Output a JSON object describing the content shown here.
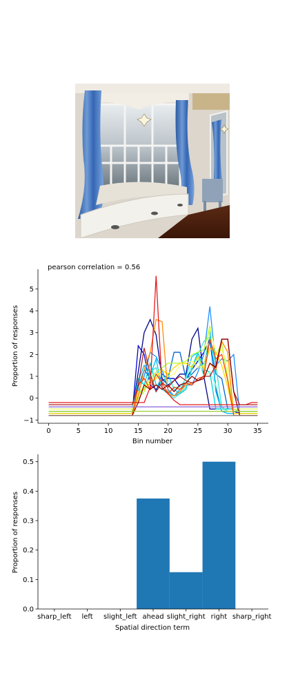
{
  "image": {
    "description": ""
  },
  "chart_data": [
    {
      "type": "line",
      "title": "pearson correlation = 0.56",
      "xlabel": "Bin number",
      "ylabel": "Proportion of responses",
      "xlim": [
        -1.8,
        36.8
      ],
      "ylim": [
        -1.15,
        5.9
      ],
      "xticks": [
        0,
        5,
        10,
        15,
        20,
        25,
        30,
        35
      ],
      "yticks": [
        -1,
        0,
        1,
        2,
        3,
        4,
        5
      ],
      "grid": false,
      "series": [
        {
          "color": "#00008b",
          "values": [
            -0.6,
            -0.6,
            -0.6,
            -0.6,
            -0.6,
            -0.6,
            -0.6,
            -0.6,
            -0.6,
            -0.6,
            -0.6,
            -0.6,
            -0.6,
            -0.6,
            -0.6,
            1.2,
            3.0,
            3.6,
            2.9,
            0.9,
            0.6,
            0.8,
            1.1,
            1.1,
            2.7,
            3.2,
            1.0,
            -0.5,
            -0.5,
            -0.5,
            -0.5,
            -0.5,
            -0.6,
            -0.6,
            -0.6,
            -0.6
          ]
        },
        {
          "color": "#0000cd",
          "values": [
            -0.7,
            -0.7,
            -0.7,
            -0.7,
            -0.7,
            -0.7,
            -0.7,
            -0.7,
            -0.7,
            -0.7,
            -0.7,
            -0.7,
            -0.7,
            -0.7,
            -0.7,
            2.4,
            2.0,
            0.6,
            0.4,
            0.8,
            0.9,
            0.9,
            0.5,
            0.9,
            1.3,
            1.7,
            2.1,
            2.7,
            0.5,
            -0.6,
            -0.6,
            -0.6,
            -0.7,
            -0.7,
            -0.7,
            -0.7
          ]
        },
        {
          "color": "#0066cc",
          "values": [
            -0.6,
            -0.6,
            -0.6,
            -0.6,
            -0.6,
            -0.6,
            -0.6,
            -0.6,
            -0.6,
            -0.6,
            -0.6,
            -0.6,
            -0.6,
            -0.6,
            -0.6,
            0.5,
            1.3,
            0.9,
            0.3,
            1.1,
            0.9,
            2.1,
            2.1,
            0.9,
            1.1,
            1.4,
            1.6,
            2.6,
            1.1,
            0.9,
            -0.5,
            -0.5,
            -0.6,
            -0.6,
            -0.6,
            -0.6
          ]
        },
        {
          "color": "#1e90ff",
          "values": [
            -0.7,
            -0.7,
            -0.7,
            -0.7,
            -0.7,
            -0.7,
            -0.7,
            -0.7,
            -0.7,
            -0.7,
            -0.7,
            -0.7,
            -0.7,
            -0.7,
            -0.7,
            0.3,
            1.0,
            2.1,
            1.9,
            1.3,
            0.4,
            0.1,
            0.4,
            0.6,
            0.6,
            1.2,
            2.0,
            4.2,
            1.5,
            1.8,
            1.7,
            2.0,
            -0.7,
            -0.7,
            -0.7,
            -0.7
          ]
        },
        {
          "color": "#00bfff",
          "values": [
            -0.7,
            -0.7,
            -0.7,
            -0.7,
            -0.7,
            -0.7,
            -0.7,
            -0.7,
            -0.7,
            -0.7,
            -0.7,
            -0.7,
            -0.7,
            -0.7,
            -0.7,
            0.8,
            1.5,
            1.0,
            1.8,
            0.4,
            0.3,
            0.1,
            0.2,
            1.0,
            1.9,
            2.1,
            1.2,
            3.2,
            0.3,
            -0.6,
            -0.7,
            -0.7,
            -0.7,
            -0.7,
            -0.7,
            -0.7
          ]
        },
        {
          "color": "#00ced1",
          "values": [
            -0.5,
            -0.5,
            -0.5,
            -0.5,
            -0.5,
            -0.5,
            -0.5,
            -0.5,
            -0.5,
            -0.5,
            -0.5,
            -0.5,
            -0.5,
            -0.5,
            -0.5,
            0.9,
            0.6,
            1.6,
            0.6,
            0.6,
            1.1,
            0.4,
            0.2,
            0.4,
            1.4,
            2.1,
            1.3,
            1.2,
            -0.5,
            -0.5,
            -0.5,
            -0.5,
            -0.5,
            -0.5,
            -0.5,
            -0.5
          ]
        },
        {
          "color": "#40e0d0",
          "values": [
            -0.6,
            -0.6,
            -0.6,
            -0.6,
            -0.6,
            -0.6,
            -0.6,
            -0.6,
            -0.6,
            -0.6,
            -0.6,
            -0.6,
            -0.6,
            -0.6,
            -0.6,
            0.3,
            0.4,
            1.2,
            1.4,
            0.4,
            0.2,
            0.0,
            0.2,
            0.5,
            1.3,
            2.0,
            2.6,
            2.8,
            1.5,
            -0.4,
            -0.6,
            -0.6,
            -0.6,
            -0.6,
            -0.6,
            -0.6
          ]
        },
        {
          "color": "#7fffd4",
          "values": [
            -0.6,
            -0.6,
            -0.6,
            -0.6,
            -0.6,
            -0.6,
            -0.6,
            -0.6,
            -0.6,
            -0.6,
            -0.6,
            -0.6,
            -0.6,
            -0.6,
            -0.6,
            0.1,
            0.6,
            0.8,
            1.1,
            1.0,
            0.8,
            0.5,
            0.5,
            0.9,
            1.5,
            1.8,
            1.0,
            1.2,
            0.6,
            -0.5,
            -0.6,
            -0.6,
            -0.6,
            -0.6,
            -0.6,
            -0.6
          ]
        },
        {
          "color": "#adff2f",
          "values": [
            -0.6,
            -0.6,
            -0.6,
            -0.6,
            -0.6,
            -0.6,
            -0.6,
            -0.6,
            -0.6,
            -0.6,
            -0.6,
            -0.6,
            -0.6,
            -0.6,
            -0.6,
            0.0,
            0.3,
            0.9,
            1.2,
            1.4,
            1.6,
            1.6,
            1.6,
            1.7,
            2.0,
            2.1,
            2.2,
            3.3,
            2.0,
            2.5,
            0.9,
            -0.5,
            -0.6,
            -0.6,
            -0.6,
            -0.6
          ]
        },
        {
          "color": "#ffff66",
          "values": [
            -0.5,
            -0.5,
            -0.5,
            -0.5,
            -0.5,
            -0.5,
            -0.5,
            -0.5,
            -0.5,
            -0.5,
            -0.5,
            -0.5,
            -0.5,
            -0.5,
            -0.5,
            0.3,
            0.5,
            0.8,
            1.0,
            1.3,
            1.0,
            1.1,
            1.5,
            1.6,
            1.7,
            1.4,
            1.5,
            3.2,
            2.1,
            2.2,
            1.5,
            -0.5,
            -0.5,
            -0.5,
            -0.5,
            -0.5
          ]
        },
        {
          "color": "#ffd700",
          "values": [
            -0.7,
            -0.7,
            -0.7,
            -0.7,
            -0.7,
            -0.7,
            -0.7,
            -0.7,
            -0.7,
            -0.7,
            -0.7,
            -0.7,
            -0.7,
            -0.7,
            -0.7,
            0.2,
            0.4,
            0.7,
            0.9,
            1.3,
            1.1,
            1.4,
            1.6,
            1.6,
            1.4,
            1.9,
            1.3,
            2.3,
            2.1,
            1.5,
            0.5,
            -0.7,
            -0.7,
            -0.7,
            -0.7,
            -0.7
          ]
        },
        {
          "color": "#ff8c00",
          "values": [
            -0.8,
            -0.8,
            -0.8,
            -0.8,
            -0.8,
            -0.8,
            -0.8,
            -0.8,
            -0.8,
            -0.8,
            -0.8,
            -0.8,
            -0.8,
            -0.8,
            -0.8,
            0.1,
            1.3,
            2.1,
            3.6,
            3.5,
            0.2,
            0.1,
            0.3,
            0.6,
            0.7,
            0.8,
            0.9,
            1.6,
            1.3,
            2.6,
            2.1,
            -0.8,
            -0.8,
            -0.8,
            -0.8,
            -0.8
          ]
        },
        {
          "color": "#ff4500",
          "values": [
            -0.8,
            -0.8,
            -0.8,
            -0.8,
            -0.8,
            -0.8,
            -0.8,
            -0.8,
            -0.8,
            -0.8,
            -0.8,
            -0.8,
            -0.8,
            -0.8,
            -0.8,
            0.6,
            0.9,
            0.4,
            1.1,
            0.7,
            0.2,
            0.5,
            0.4,
            0.7,
            0.6,
            0.9,
            1.0,
            2.7,
            1.8,
            2.0,
            0.8,
            -0.8,
            -0.8,
            -0.8,
            -0.8,
            -0.8
          ]
        },
        {
          "color": "#e31a1c",
          "values": [
            -0.2,
            -0.2,
            -0.2,
            -0.2,
            -0.2,
            -0.2,
            -0.2,
            -0.2,
            -0.2,
            -0.2,
            -0.2,
            -0.2,
            -0.2,
            -0.2,
            -0.2,
            -0.2,
            -0.2,
            0.5,
            5.6,
            0.5,
            0.2,
            -0.1,
            -0.3,
            -0.3,
            -0.3,
            -0.3,
            -0.3,
            -0.3,
            -0.3,
            -0.3,
            -0.3,
            -0.3,
            -0.3,
            -0.3,
            -0.2,
            -0.2
          ]
        },
        {
          "color": "#b22222",
          "values": [
            -0.3,
            -0.3,
            -0.3,
            -0.3,
            -0.3,
            -0.3,
            -0.3,
            -0.3,
            -0.3,
            -0.3,
            -0.3,
            -0.3,
            -0.3,
            -0.3,
            -0.3,
            0.6,
            2.3,
            1.1,
            0.3,
            0.7,
            0.5,
            0.8,
            1.0,
            0.8,
            0.7,
            0.8,
            1.0,
            1.0,
            1.5,
            2.7,
            2.7,
            0.3,
            -0.3,
            -0.3,
            -0.3,
            -0.3
          ]
        },
        {
          "color": "#8b0000",
          "values": [
            -0.8,
            -0.8,
            -0.8,
            -0.8,
            -0.8,
            -0.8,
            -0.8,
            -0.8,
            -0.8,
            -0.8,
            -0.8,
            -0.8,
            -0.8,
            -0.8,
            -0.8,
            -0.2,
            0.6,
            0.4,
            0.6,
            0.4,
            0.6,
            0.3,
            0.6,
            0.7,
            1.0,
            0.8,
            0.9,
            1.6,
            1.4,
            2.7,
            2.7,
            0.3,
            -0.8,
            -0.8,
            -0.8,
            -0.8
          ]
        },
        {
          "color": "#9370db",
          "values": [
            -0.4,
            -0.4,
            -0.4,
            -0.4,
            -0.4,
            -0.4,
            -0.4,
            -0.4,
            -0.4,
            -0.4,
            -0.4,
            -0.4,
            -0.4,
            -0.4,
            -0.4,
            -0.4,
            -0.4,
            -0.4,
            -0.4,
            -0.4,
            -0.4,
            -0.4,
            -0.4,
            -0.4,
            -0.4,
            -0.4,
            -0.4,
            -0.4,
            -0.4,
            -0.4,
            -0.4,
            -0.4,
            -0.4,
            -0.4,
            -0.4,
            -0.4
          ]
        },
        {
          "color": "#808080",
          "values": [
            -0.8,
            -0.8,
            -0.8,
            -0.8,
            -0.8,
            -0.8,
            -0.8,
            -0.8,
            -0.8,
            -0.8,
            -0.8,
            -0.8,
            -0.8,
            -0.8,
            -0.8,
            -0.8,
            -0.8,
            -0.8,
            -0.8,
            -0.8,
            -0.8,
            -0.8,
            -0.8,
            -0.8,
            -0.8,
            -0.8,
            -0.8,
            -0.8,
            -0.8,
            -0.8,
            -0.8,
            -0.8,
            -0.8,
            -0.8,
            -0.8,
            -0.8
          ]
        },
        {
          "color": "#9acd32",
          "values": [
            -0.6,
            -0.6,
            -0.6,
            -0.6,
            -0.6,
            -0.6,
            -0.6,
            -0.6,
            -0.6,
            -0.6,
            -0.6,
            -0.6,
            -0.6,
            -0.6,
            -0.6,
            -0.6,
            -0.6,
            -0.6,
            -0.6,
            -0.6,
            -0.6,
            -0.6,
            -0.6,
            -0.6,
            -0.6,
            -0.6,
            -0.6,
            -0.6,
            -0.6,
            -0.6,
            -0.6,
            -0.6,
            -0.6,
            -0.6,
            -0.6,
            -0.6
          ]
        }
      ]
    },
    {
      "type": "bar",
      "title": "",
      "xlabel": "Spatial direction term",
      "ylabel": "Proportion of responses",
      "categories": [
        "sharp_left",
        "left",
        "slight_left",
        "ahead",
        "slight_right",
        "right",
        "sharp_right"
      ],
      "values": [
        0.0,
        0.0,
        0.0,
        0.375,
        0.125,
        0.5,
        0.0
      ],
      "ylim": [
        0,
        0.525
      ],
      "yticks": [
        "0.0",
        "0.1",
        "0.2",
        "0.3",
        "0.4",
        "0.5"
      ],
      "color": "#1f77b4",
      "grid": false
    }
  ]
}
